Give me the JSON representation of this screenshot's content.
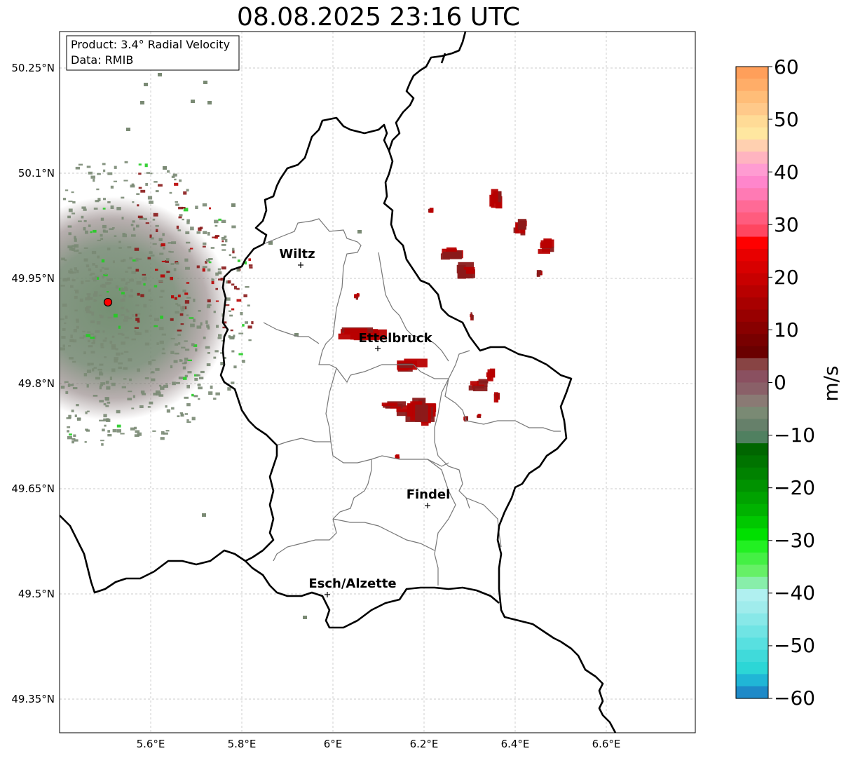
{
  "title": "08.08.2025 23:16 UTC",
  "info_box": {
    "product_line": "Product: 3.4° Radial Velocity",
    "data_line": "Data: RMIB"
  },
  "lat_ticks": [
    "50.25°N",
    "50.1°N",
    "49.95°N",
    "49.8°N",
    "49.65°N",
    "49.5°N",
    "49.35°N"
  ],
  "lon_ticks": [
    "5.6°E",
    "5.8°E",
    "6°E",
    "6.2°E",
    "6.4°E",
    "6.6°E"
  ],
  "cities": [
    {
      "name": "Wiltz",
      "id": "wiltz"
    },
    {
      "name": "Ettelbruck",
      "id": "ettelbruck"
    },
    {
      "name": "Findel",
      "id": "findel"
    },
    {
      "name": "Esch/Alzette",
      "id": "esch"
    }
  ],
  "colorbar": {
    "label": "m/s",
    "ticks": [
      "60",
      "50",
      "40",
      "30",
      "20",
      "10",
      "0",
      "−10",
      "−20",
      "−30",
      "−40",
      "−50",
      "−60"
    ],
    "range": [
      -60,
      60
    ],
    "colors_top_to_bottom": [
      "#ff9f5a",
      "#ffad68",
      "#ffbd78",
      "#ffc98a",
      "#ffdb96",
      "#ffe7a0",
      "#ffd0b0",
      "#ffb4c0",
      "#ff9cd2",
      "#ff86cc",
      "#ff7ab4",
      "#ff6a96",
      "#ff5c7e",
      "#ff4660",
      "#ff0000",
      "#e80000",
      "#d80000",
      "#c80000",
      "#b80000",
      "#a80000",
      "#980000",
      "#880000",
      "#780000",
      "#6a0000",
      "#884444",
      "#8a5060",
      "#8a6068",
      "#8a7a74",
      "#7a8a74",
      "#66806a",
      "#508060",
      "#006600",
      "#007400",
      "#008200",
      "#009200",
      "#00a200",
      "#00b200",
      "#00c800",
      "#00e000",
      "#22f022",
      "#44f044",
      "#66f066",
      "#88eeaa",
      "#b0f0f0",
      "#a0ecec",
      "#88e8e8",
      "#70e4e4",
      "#58e0e0",
      "#40dada",
      "#2cd6d6",
      "#20b6d6",
      "#1e8ac8"
    ]
  },
  "radar_site": {
    "lat": 49.915,
    "lon": 5.505,
    "color": "#ff0000"
  },
  "echo_colors": {
    "near_zero": "#7a8a74",
    "strong_positive": "#b80000",
    "positive": "#8a1a1a",
    "negative": "#22cc22"
  }
}
